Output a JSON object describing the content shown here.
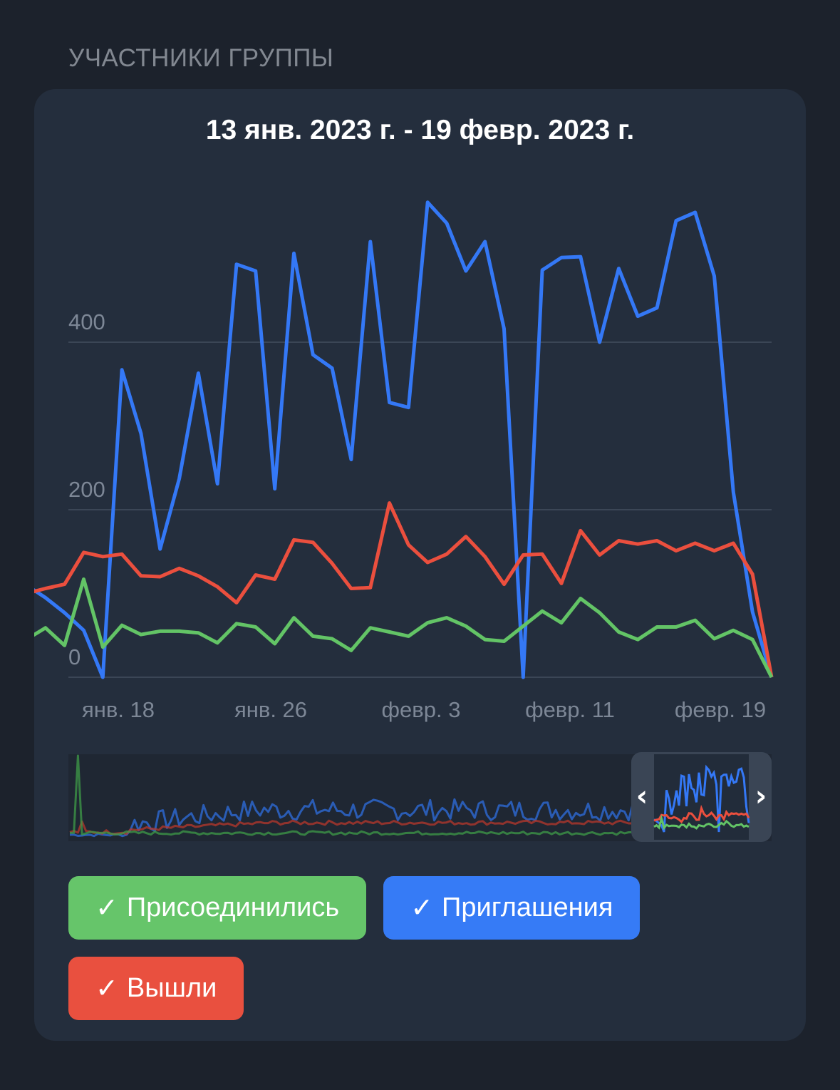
{
  "section": {
    "title": "УЧАСТНИКИ ГРУППЫ"
  },
  "card": {
    "range_title": "13 янв. 2023 г. - 19 февр. 2023 г."
  },
  "colors": {
    "joined": "#63c466",
    "invites": "#3478f6",
    "left": "#eb4f3e",
    "grid": "#3b4656",
    "axis_text": "#7d8796"
  },
  "legend": [
    {
      "id": "joined",
      "label": "Присоединились",
      "check": "✓",
      "color": "#66c56a"
    },
    {
      "id": "invites",
      "label": "Приглашения",
      "check": "✓",
      "color": "#367bf6"
    },
    {
      "id": "left",
      "label": "Вышли",
      "check": "✓",
      "color": "#e9503f"
    }
  ],
  "navigator": {
    "left_handle": "‹",
    "right_handle": "›"
  },
  "chart_data": {
    "type": "line",
    "title": "13 янв. 2023 г. - 19 февр. 2023 г.",
    "xlabel": "",
    "ylabel": "",
    "y_ticks": [
      0,
      200,
      400
    ],
    "ylim": [
      0,
      580
    ],
    "x_tick_labels": [
      "янв. 18",
      "янв. 26",
      "февр. 3",
      "февр. 11",
      "февр. 19"
    ],
    "grid": true,
    "legend_position": "bottom",
    "x": [
      "янв. 13",
      "янв. 14",
      "янв. 15",
      "янв. 16",
      "янв. 17",
      "янв. 18",
      "янв. 19",
      "янв. 20",
      "янв. 21",
      "янв. 22",
      "янв. 23",
      "янв. 24",
      "янв. 25",
      "янв. 26",
      "янв. 27",
      "янв. 28",
      "янв. 29",
      "янв. 30",
      "янв. 31",
      "февр. 1",
      "февр. 2",
      "февр. 3",
      "февр. 4",
      "февр. 5",
      "февр. 6",
      "февр. 7",
      "февр. 8",
      "февр. 9",
      "февр. 10",
      "февр. 11",
      "февр. 12",
      "февр. 13",
      "февр. 14",
      "февр. 15",
      "февр. 16",
      "февр. 17",
      "февр. 18",
      "февр. 19",
      "февр. 20",
      "февр. 21"
    ],
    "series": [
      {
        "name": "Приглашения",
        "color": "#3478f6",
        "values": [
          110,
          95,
          77,
          56,
          0,
          367,
          291,
          153,
          237,
          363,
          231,
          493,
          485,
          225,
          506,
          385,
          369,
          260,
          520,
          328,
          322,
          567,
          542,
          485,
          520,
          416,
          0,
          486,
          501,
          502,
          400,
          488,
          431,
          441,
          545,
          555,
          479,
          221,
          78,
          0
        ]
      },
      {
        "name": "Вышли",
        "color": "#eb4f3e",
        "values": [
          100,
          106,
          111,
          149,
          144,
          147,
          121,
          120,
          130,
          121,
          108,
          89,
          122,
          117,
          164,
          161,
          136,
          106,
          107,
          208,
          158,
          137,
          147,
          168,
          144,
          111,
          146,
          147,
          112,
          175,
          146,
          163,
          159,
          163,
          151,
          160,
          151,
          160,
          123,
          0
        ]
      },
      {
        "name": "Присоединились",
        "color": "#63c466",
        "values": [
          45,
          59,
          38,
          117,
          36,
          62,
          51,
          55,
          55,
          53,
          41,
          64,
          60,
          40,
          71,
          49,
          46,
          32,
          59,
          54,
          49,
          65,
          71,
          61,
          45,
          43,
          61,
          79,
          65,
          94,
          77,
          54,
          45,
          60,
          60,
          68,
          46,
          56,
          45,
          0
        ]
      }
    ]
  }
}
